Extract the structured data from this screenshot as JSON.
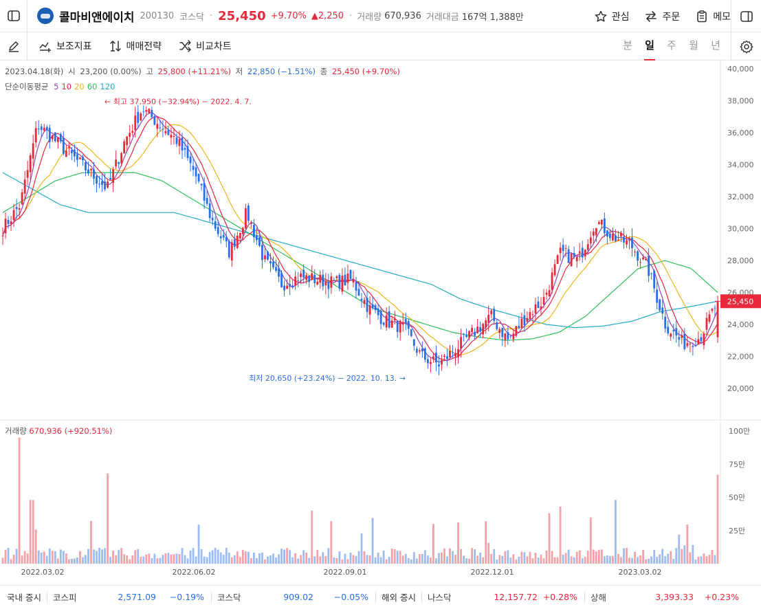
{
  "header": {
    "name": "콜마비앤에이치",
    "code": "200130",
    "market": "코스닥",
    "price": "25,450",
    "change_pct": "+9.70%",
    "change_amt": "▲2,250",
    "volume_label": "거래량",
    "volume": "670,936",
    "amount_label": "거래대금",
    "amount": "167억 1,388만",
    "actions": {
      "watch": "관심",
      "order": "주문",
      "memo": "메모"
    }
  },
  "toolbar": {
    "indicator": "보조지표",
    "strategy": "매매전략",
    "compare": "비교차트",
    "periods": [
      "분",
      "일",
      "주",
      "월",
      "년"
    ],
    "active_period": "일"
  },
  "ohlc": {
    "date": "2023.04.18(화)",
    "open_label": "시",
    "open": "23,200 (0.00%)",
    "high_label": "고",
    "high": "25,800 (+11.21%)",
    "low_label": "저",
    "low": "22,850 (−1.51%)",
    "close_label": "종",
    "close": "25,450 (+9.70%)"
  },
  "ma_legend": {
    "label": "단순이동평균",
    "periods": [
      "5",
      "10",
      "20",
      "60",
      "120"
    ],
    "colors": [
      "#8e44c8",
      "#e8283b",
      "#f0b51e",
      "#2fbf5a",
      "#24a9c9"
    ]
  },
  "annotations": {
    "high": "← 최고 37,950 (−32.94%) − 2022. 4. 7.",
    "low": "최저 20,650 (+23.24%) − 2022. 10. 13. →"
  },
  "volume_legend": {
    "label": "거래량",
    "value": "670,936 (+920.51%)"
  },
  "colors": {
    "up": "#e8283b",
    "down": "#2a6ee8",
    "vol_up": "#f4a1a8",
    "vol_down": "#9dbcf0"
  },
  "chart_data": {
    "type": "candlestick",
    "price_axis": {
      "ticks": [
        "40,000",
        "38,000",
        "36,000",
        "34,000",
        "32,000",
        "30,000",
        "28,000",
        "26,000",
        "24,000",
        "22,000",
        "20,000"
      ],
      "ylim": [
        19500,
        40300
      ],
      "current_price_tag": "25,450"
    },
    "volume_axis": {
      "ticks": [
        "100만",
        "75만",
        "50만",
        "25만"
      ],
      "ylim": [
        0,
        1000000
      ]
    },
    "x_ticks": [
      "2022.03.02",
      "2022.06.02",
      "2022.09.01",
      "2022.12.01",
      "2023.03.02"
    ],
    "close_path": [
      30000,
      31500,
      36500,
      35500,
      34500,
      33500,
      32500,
      35500,
      37500,
      36500,
      35500,
      33500,
      30500,
      28500,
      31000,
      28000,
      26500,
      27000,
      26800,
      26600,
      26800,
      25000,
      24200,
      23800,
      22000,
      21500,
      22500,
      23500,
      24500,
      23000,
      24500,
      25500,
      28500,
      28000,
      30500,
      29500,
      29000,
      27500,
      24000,
      22800,
      23200,
      25450
    ],
    "ma120_path": [
      33500,
      32500,
      31500,
      31000,
      31000,
      31000,
      31000,
      30500,
      30000,
      29500,
      29000,
      28500,
      28000,
      27500,
      27000,
      26500,
      25600,
      25000,
      24500,
      24000,
      23800,
      23900,
      24200,
      24800,
      25100,
      25450
    ],
    "ma60_path": [
      31000,
      32000,
      33000,
      33500,
      33500,
      33500,
      33000,
      32000,
      31000,
      30000,
      29000,
      28000,
      27000,
      26000,
      25000,
      24500,
      24000,
      23500,
      23200,
      23000,
      23100,
      23500,
      24500,
      26000,
      27500,
      28000,
      27500,
      26000
    ],
    "highlights": {
      "max_high": 37950,
      "min_low": 20650
    }
  },
  "footer": {
    "domestic": "국내 증시",
    "kospi": {
      "name": "코스피",
      "value": "2,571.09",
      "change": "−0.19%"
    },
    "kosdaq": {
      "name": "코스닥",
      "value": "909.02",
      "change": "−0.05%"
    },
    "overseas": "해외 증시",
    "nasdaq": {
      "name": "나스닥",
      "value": "12,157.72",
      "change": "+0.28%"
    },
    "shanghai": {
      "name": "상해",
      "value": "3,393.33",
      "change": "+0.23%"
    }
  }
}
